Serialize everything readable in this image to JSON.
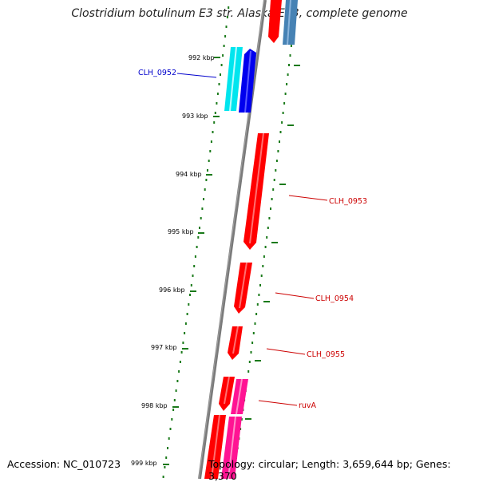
{
  "title": "Clostridium botulinum E3 str. Alaska E43, complete genome",
  "footer": {
    "accession": "Accession: NC_010723",
    "summary": "Topology: circular; Length: 3,659,644 bp; Genes: 3,370"
  },
  "tick_labels": [
    "992 kbp",
    "993 kbp",
    "994 kbp",
    "995 kbp",
    "996 kbp",
    "997 kbp",
    "998 kbp",
    "999 kbp"
  ],
  "gene_labels": [
    {
      "name": "CLH_0952",
      "color": "#0000cc"
    },
    {
      "name": "CLH_0953",
      "color": "#cc0000"
    },
    {
      "name": "CLH_0954",
      "color": "#cc0000"
    },
    {
      "name": "CLH_0955",
      "color": "#cc0000"
    },
    {
      "name": "ruvA",
      "color": "#cc0000"
    }
  ],
  "colors": {
    "backbone": "#7a7a7a",
    "tick": "#1a7a1a",
    "gene_red": "#ff0000",
    "gene_blue": "#0000ee",
    "gene_cyan": "#00e5ee",
    "gene_steel": "#4682b4",
    "gene_pink": "#ff1493"
  }
}
